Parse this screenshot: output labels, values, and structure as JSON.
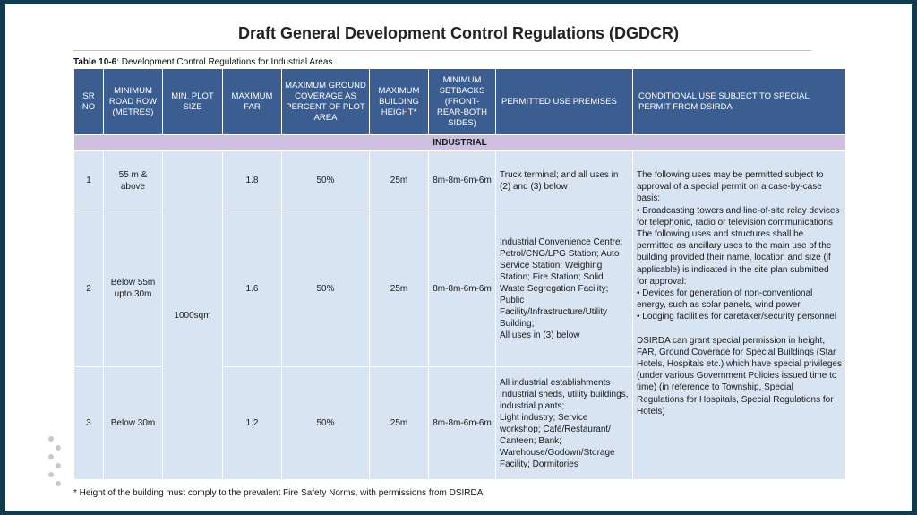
{
  "title": "Draft General Development Control Regulations (DGDCR)",
  "caption": {
    "label": "Table 10-6",
    "text": ": Development Control Regulations for Industrial Areas"
  },
  "headers": {
    "sr_no": "SR NO",
    "min_road_row": "MINIMUM ROAD ROW (METRES)",
    "min_plot_size": "MIN. PLOT SIZE",
    "max_far": "MAXIMUM FAR",
    "max_ground_coverage": "MAXIMUM GROUND COVERAGE AS PERCENT OF PLOT AREA",
    "max_building_height": "MAXIMUM BUILDING HEIGHT*",
    "min_setbacks": "MINIMUM SETBACKS (FRONT-REAR-BOTH SIDES)",
    "permitted_use": "PERMITTED USE PREMISES",
    "conditional_use": "CONDITIONAL USE SUBJECT TO SPECIAL PERMIT FROM DSIRDA"
  },
  "section_label": "INDUSTRIAL",
  "min_plot_size_value": "1000sqm",
  "rows": [
    {
      "sr": "1",
      "road_row": "55 m & above",
      "far": "1.8",
      "coverage": "50%",
      "height": "25m",
      "setbacks": "8m-8m-6m-6m",
      "permitted": [
        "Truck terminal; and all uses in (2) and (3) below"
      ]
    },
    {
      "sr": "2",
      "road_row": "Below 55m upto 30m",
      "far": "1.6",
      "coverage": "50%",
      "height": "25m",
      "setbacks": "8m-8m-6m-6m",
      "permitted": [
        "Industrial Convenience Centre; Petrol/CNG/LPG Station; Auto Service Station; Weighing",
        "Station; Fire Station; Solid Waste Segregation Facility; Public Facility/Infrastructure/Utility Building;",
        "All uses in (3) below"
      ]
    },
    {
      "sr": "3",
      "road_row": "Below 30m",
      "far": "1.2",
      "coverage": "50%",
      "height": "25m",
      "setbacks": "8m-8m-6m-6m",
      "permitted": [
        "All industrial establishments",
        "Industrial sheds, utility buildings, industrial plants;",
        "Light industry; Service workshop; Café/Restaurant/ Canteen; Bank; Warehouse/Godown/Storage Facility; Dormitories"
      ]
    }
  ],
  "conditional_use_lines": [
    "The following uses may be permitted subject to approval of a special permit on a case-by-case basis:",
    "• Broadcasting towers and line-of-site relay devices for telephonic, radio or television communications",
    "The following uses and structures shall be permitted as ancillary uses to the main use of the building provided their name, location and size (if applicable) is indicated in the site plan submitted for approval:",
    "• Devices for generation of non-conventional energy, such as solar panels, wind power",
    "• Lodging facilities for caretaker/security personnel",
    "",
    "DSIRDA can grant special permission in height, FAR, Ground Coverage for Special Buildings (Star Hotels, Hospitals etc.) which have special privileges (under various Government Policies issued time to time) (in reference to Township, Special Regulations for Hospitals, Special Regulations for Hotels)"
  ],
  "footnote": "* Height of the building must comply to the prevalent Fire Safety Norms, with permissions from DSIRDA"
}
